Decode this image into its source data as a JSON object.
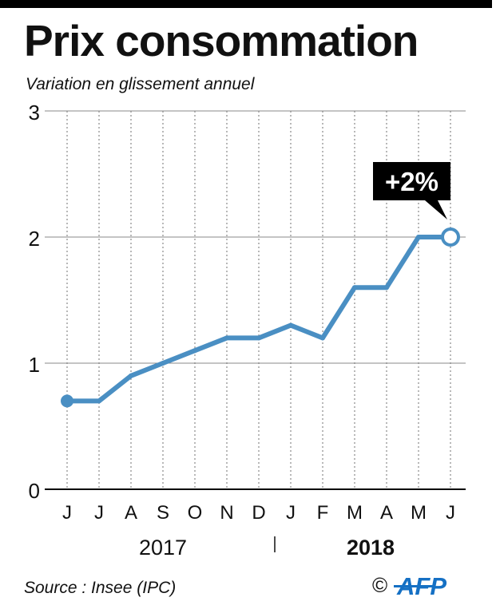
{
  "header": {
    "title": "Prix consommation",
    "subtitle": "Variation en glissement annuel"
  },
  "chart_data": {
    "type": "line",
    "title": "Prix consommation",
    "subtitle": "Variation en glissement annuel",
    "categories": [
      "J",
      "J",
      "A",
      "S",
      "O",
      "N",
      "D",
      "J",
      "F",
      "M",
      "A",
      "M",
      "J"
    ],
    "series": [
      {
        "name": "Variation en glissement annuel",
        "values": [
          0.7,
          0.7,
          0.9,
          1.0,
          1.1,
          1.2,
          1.2,
          1.3,
          1.2,
          1.6,
          1.6,
          2.0,
          2.0
        ]
      }
    ],
    "years": [
      "2017",
      "2018"
    ],
    "year_start_index": [
      0,
      7
    ],
    "ylim": [
      0,
      3
    ],
    "yticks": [
      "0",
      "1",
      "2",
      "3"
    ],
    "annotation": {
      "label": "+2%",
      "point_index": 12
    },
    "xlabel": "",
    "ylabel": "",
    "grid": true,
    "colors": {
      "line": "#4a8fc3",
      "axis": "#000000",
      "gridline": "#888888",
      "annotation_bg": "#000000",
      "annotation_text": "#ffffff"
    }
  },
  "footer": {
    "source": "Source : Insee  (IPC)",
    "copyright": "©",
    "logo": "AFP"
  }
}
